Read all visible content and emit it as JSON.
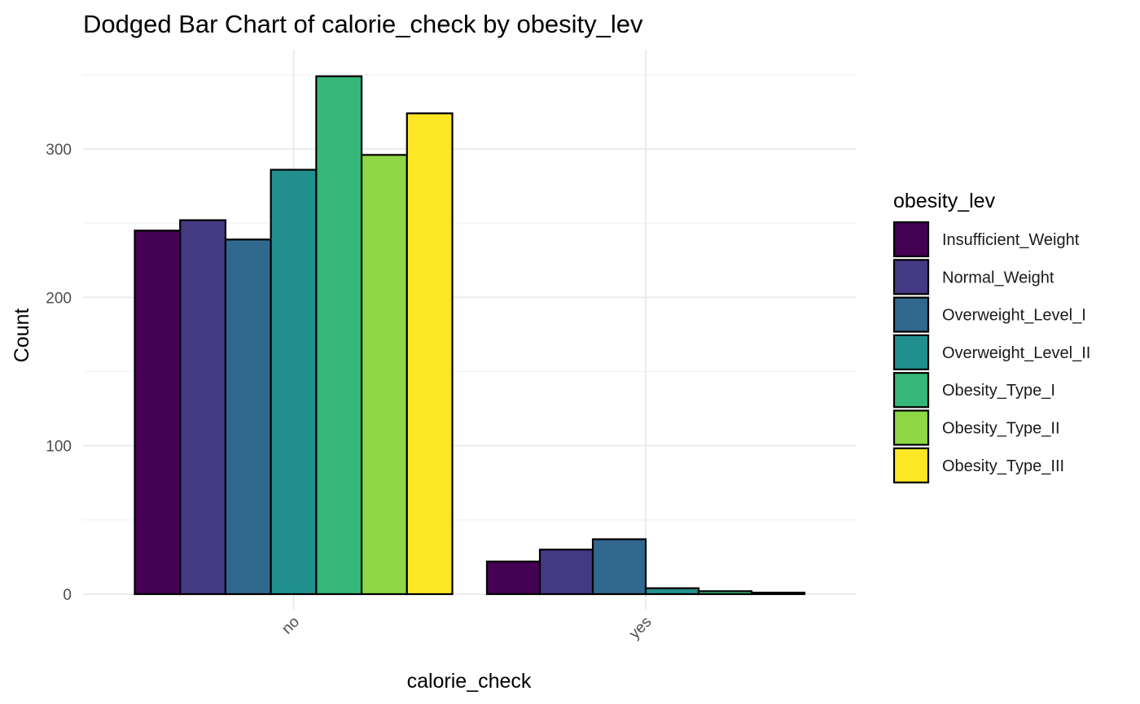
{
  "chart_data": {
    "type": "bar",
    "title": "Dodged Bar Chart of calorie_check by obesity_lev",
    "xlabel": "calorie_check",
    "ylabel": "Count",
    "categories": [
      "no",
      "yes"
    ],
    "ylim": [
      0,
      365
    ],
    "y_ticks": [
      0,
      100,
      200,
      300
    ],
    "grid": true,
    "legend_title": "obesity_lev",
    "legend_position": "right",
    "series": [
      {
        "name": "Insufficient_Weight",
        "color": "#440154",
        "values": [
          245,
          22
        ]
      },
      {
        "name": "Normal_Weight",
        "color": "#443A83",
        "values": [
          252,
          30
        ]
      },
      {
        "name": "Overweight_Level_I",
        "color": "#31688E",
        "values": [
          239,
          37
        ]
      },
      {
        "name": "Overweight_Level_II",
        "color": "#21908C",
        "values": [
          286,
          4
        ]
      },
      {
        "name": "Obesity_Type_I",
        "color": "#35B779",
        "values": [
          349,
          2
        ]
      },
      {
        "name": "Obesity_Type_II",
        "color": "#8FD744",
        "values": [
          296,
          1
        ]
      },
      {
        "name": "Obesity_Type_III",
        "color": "#FDE725",
        "values": [
          324,
          0
        ]
      }
    ],
    "bar_outline_color": "#000000"
  }
}
